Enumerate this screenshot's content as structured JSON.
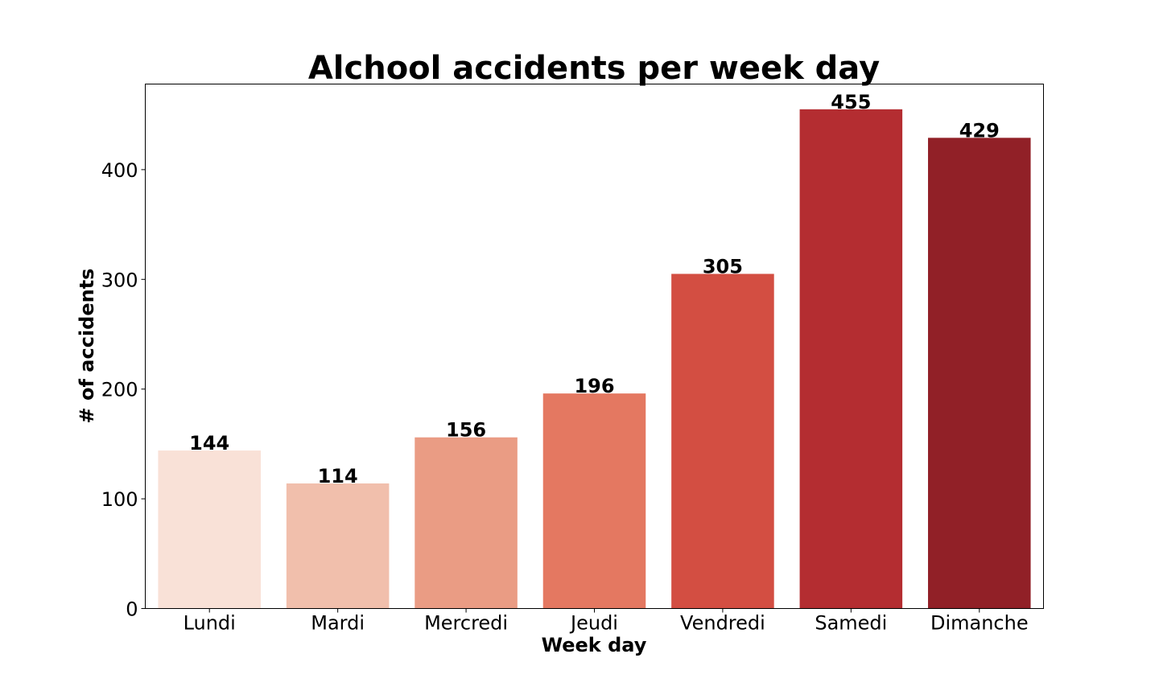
{
  "chart_data": {
    "type": "bar",
    "title": "Alchool accidents per week day",
    "xlabel": "Week day",
    "ylabel": "# of accidents",
    "categories": [
      "Lundi",
      "Mardi",
      "Mercredi",
      "Jeudi",
      "Vendredi",
      "Samedi",
      "Dimanche"
    ],
    "values": [
      144,
      114,
      156,
      196,
      305,
      455,
      429
    ],
    "data_labels": [
      "144",
      "114",
      "156",
      "196",
      "305",
      "455",
      "429"
    ],
    "colors": [
      "#f9e1d7",
      "#f1bfac",
      "#ea9c84",
      "#e47861",
      "#d34e42",
      "#b42d31",
      "#912027"
    ],
    "ylim": [
      0,
      478
    ],
    "yticks": [
      0,
      100,
      200,
      300,
      400
    ],
    "ytick_labels": [
      "0",
      "100",
      "200",
      "300",
      "400"
    ],
    "grid": false,
    "legend": "none"
  }
}
